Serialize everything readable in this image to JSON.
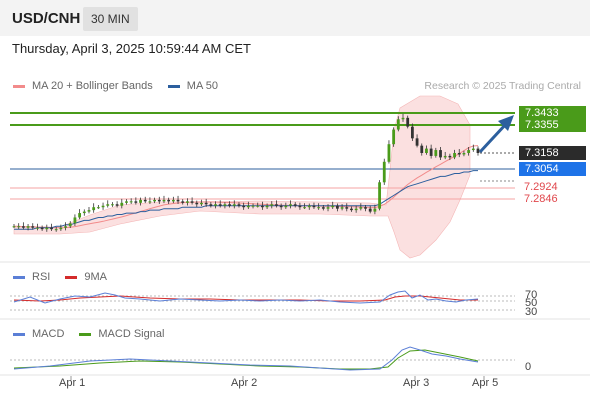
{
  "header": {
    "symbol": "USD/CNH",
    "interval": "30 MIN"
  },
  "datetime": "Thursday, April 3, 2025 10:59:44 AM CET",
  "legend": [
    {
      "label": "MA 20 + Bollinger Bands",
      "color": "#f28b8b"
    },
    {
      "label": "MA 50",
      "color": "#2c5f9e"
    }
  ],
  "credit": "Research © 2025 Trading Central",
  "price_levels": [
    {
      "value": "7.3433",
      "kind": "resistance",
      "color": "#5aa31a"
    },
    {
      "value": "7.3355",
      "kind": "resistance",
      "color": "#5aa31a"
    },
    {
      "value": "7.3158",
      "kind": "last",
      "color": "#2b2b2b"
    },
    {
      "value": "7.3054",
      "kind": "pivot",
      "color": "#1e73e8"
    },
    {
      "value": "7.2924",
      "kind": "support",
      "color": "#e0474c"
    },
    {
      "value": "7.2846",
      "kind": "support",
      "color": "#e0474c"
    }
  ],
  "rsi_panel": {
    "legend": [
      {
        "label": "RSI",
        "color": "#5b7fd6"
      },
      {
        "label": "9MA",
        "color": "#d42b2b"
      }
    ],
    "levels": [
      "70",
      "50",
      "30"
    ]
  },
  "macd_panel": {
    "legend": [
      {
        "label": "MACD",
        "color": "#5b7fd6"
      },
      {
        "label": "MACD Signal",
        "color": "#4a9b1a"
      }
    ],
    "levels": [
      "0"
    ]
  },
  "x_axis": [
    "Apr 1",
    "Apr 2",
    "Apr 3",
    "Apr 5"
  ],
  "chart_data": {
    "type": "candlestick",
    "title": "USD/CNH",
    "timeframe": "30 MIN",
    "levels": [
      7.3433,
      7.3355,
      7.3158,
      7.3054,
      7.2924,
      7.2846
    ],
    "last_price": 7.3158,
    "x_ticks": [
      "Apr 1",
      "Apr 2",
      "Apr 3",
      "Apr 5"
    ],
    "closes": [
      7.266,
      7.266,
      7.265,
      7.266,
      7.265,
      7.265,
      7.264,
      7.265,
      7.264,
      7.264,
      7.265,
      7.266,
      7.268,
      7.272,
      7.275,
      7.276,
      7.277,
      7.279,
      7.279,
      7.28,
      7.281,
      7.281,
      7.28,
      7.282,
      7.283,
      7.283,
      7.282,
      7.284,
      7.283,
      7.283,
      7.284,
      7.283,
      7.284,
      7.283,
      7.284,
      7.283,
      7.282,
      7.283,
      7.282,
      7.281,
      7.282,
      7.281,
      7.28,
      7.281,
      7.28,
      7.281,
      7.28,
      7.281,
      7.28,
      7.279,
      7.28,
      7.28,
      7.28,
      7.279,
      7.28,
      7.281,
      7.28,
      7.279,
      7.28,
      7.281,
      7.28,
      7.279,
      7.279,
      7.28,
      7.279,
      7.279,
      7.278,
      7.279,
      7.28,
      7.278,
      7.279,
      7.278,
      7.277,
      7.278,
      7.279,
      7.278,
      7.276,
      7.278,
      7.296,
      7.31,
      7.322,
      7.332,
      7.339,
      7.34,
      7.334,
      7.326,
      7.321,
      7.316,
      7.319,
      7.314,
      7.318,
      7.313,
      7.314,
      7.313,
      7.316,
      7.315,
      7.316,
      7.318,
      7.319,
      7.316
    ],
    "ma50": [
      7.264,
      7.264,
      7.264,
      7.264,
      7.264,
      7.265,
      7.265,
      7.265,
      7.265,
      7.266,
      7.266,
      7.267,
      7.267,
      7.268,
      7.269,
      7.27,
      7.27,
      7.271,
      7.272,
      7.272,
      7.273,
      7.273,
      7.274,
      7.274,
      7.275,
      7.275,
      7.275,
      7.276,
      7.276,
      7.277,
      7.277,
      7.277,
      7.278,
      7.278,
      7.278,
      7.278,
      7.279,
      7.279,
      7.279,
      7.279,
      7.279,
      7.28,
      7.28,
      7.28,
      7.28,
      7.28,
      7.28,
      7.28,
      7.28,
      7.28,
      7.28,
      7.28,
      7.28,
      7.28,
      7.28,
      7.28,
      7.28,
      7.28,
      7.28,
      7.28,
      7.28,
      7.28,
      7.28,
      7.28,
      7.28,
      7.28,
      7.28,
      7.28,
      7.28,
      7.28,
      7.28,
      7.28,
      7.28,
      7.28,
      7.28,
      7.28,
      7.28,
      7.28,
      7.281,
      7.283,
      7.285,
      7.287,
      7.289,
      7.291,
      7.293,
      7.294,
      7.295,
      7.296,
      7.297,
      7.298,
      7.299,
      7.3,
      7.3,
      7.301,
      7.302,
      7.302,
      7.303,
      7.303,
      7.304,
      7.304
    ]
  }
}
